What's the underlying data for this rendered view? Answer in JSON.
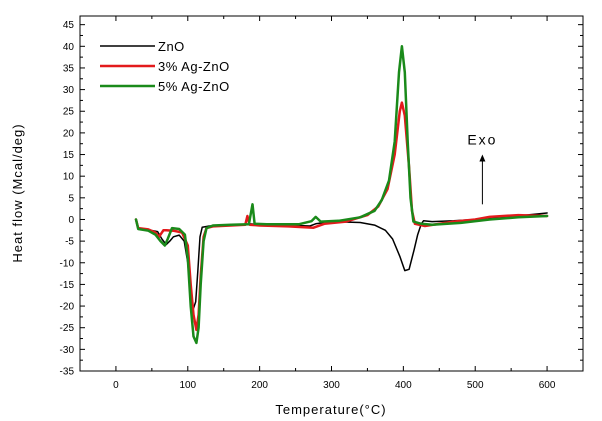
{
  "chart_data": {
    "type": "line",
    "title": "",
    "xlabel": "Temperature(°C)",
    "ylabel": "Heat flow (Mcal/deg)",
    "xlim": [
      -50,
      650
    ],
    "ylim": [
      -35,
      47
    ],
    "xticks": [
      0,
      100,
      200,
      300,
      400,
      500,
      600
    ],
    "yticks": [
      -35,
      -30,
      -25,
      -20,
      -15,
      -10,
      -5,
      0,
      5,
      10,
      15,
      20,
      25,
      30,
      35,
      40,
      45
    ],
    "grid": false,
    "legend_position": "top-left",
    "annotation": {
      "text": "Exo",
      "arrow": "up",
      "x": 510,
      "y_from": 3.5,
      "y_to": 15
    },
    "series": [
      {
        "name": "ZnO",
        "color": "#000000",
        "points": [
          [
            28,
            0
          ],
          [
            31,
            -2
          ],
          [
            45,
            -2.4
          ],
          [
            58,
            -2.8
          ],
          [
            64,
            -4.5
          ],
          [
            70,
            -5.8
          ],
          [
            75,
            -5
          ],
          [
            80,
            -4
          ],
          [
            88,
            -3.6
          ],
          [
            95,
            -5
          ],
          [
            100,
            -10
          ],
          [
            104,
            -18
          ],
          [
            108,
            -20.5
          ],
          [
            111,
            -19
          ],
          [
            114,
            -12
          ],
          [
            117,
            -4
          ],
          [
            120,
            -1.8
          ],
          [
            130,
            -1.5
          ],
          [
            150,
            -1.3
          ],
          [
            180,
            -1.2
          ],
          [
            185,
            -1
          ],
          [
            200,
            -1.2
          ],
          [
            250,
            -1.4
          ],
          [
            270,
            -1.5
          ],
          [
            278,
            -1
          ],
          [
            300,
            -0.5
          ],
          [
            340,
            -0.7
          ],
          [
            360,
            -1.3
          ],
          [
            375,
            -2.5
          ],
          [
            385,
            -4.5
          ],
          [
            395,
            -8.5
          ],
          [
            402,
            -11.8
          ],
          [
            408,
            -11.5
          ],
          [
            415,
            -7
          ],
          [
            420,
            -3.5
          ],
          [
            425,
            -1
          ],
          [
            428,
            -0.3
          ],
          [
            440,
            -0.5
          ],
          [
            470,
            -0.3
          ],
          [
            500,
            0
          ],
          [
            540,
            0.6
          ],
          [
            570,
            1
          ],
          [
            600,
            1.5
          ]
        ]
      },
      {
        "name": "3% Ag-ZnO",
        "color": "#e31a1c",
        "points": [
          [
            28,
            0
          ],
          [
            31,
            -2
          ],
          [
            45,
            -2.3
          ],
          [
            55,
            -3
          ],
          [
            60,
            -4
          ],
          [
            66,
            -2.5
          ],
          [
            70,
            -2.5
          ],
          [
            80,
            -2.6
          ],
          [
            92,
            -3
          ],
          [
            100,
            -6
          ],
          [
            104,
            -15
          ],
          [
            108,
            -22
          ],
          [
            112,
            -25.5
          ],
          [
            115,
            -22
          ],
          [
            118,
            -13
          ],
          [
            122,
            -4
          ],
          [
            126,
            -2
          ],
          [
            135,
            -1.6
          ],
          [
            160,
            -1.4
          ],
          [
            180,
            -1.2
          ],
          [
            183,
            0.8
          ],
          [
            186,
            -1.2
          ],
          [
            200,
            -1.4
          ],
          [
            240,
            -1.6
          ],
          [
            275,
            -1.9
          ],
          [
            290,
            -1
          ],
          [
            320,
            -0.5
          ],
          [
            350,
            1
          ],
          [
            365,
            3
          ],
          [
            378,
            7
          ],
          [
            388,
            15
          ],
          [
            395,
            25
          ],
          [
            398,
            27
          ],
          [
            402,
            24
          ],
          [
            408,
            12
          ],
          [
            412,
            2
          ],
          [
            416,
            -1
          ],
          [
            430,
            -1.5
          ],
          [
            470,
            -0.5
          ],
          [
            500,
            0
          ],
          [
            520,
            0.6
          ],
          [
            560,
            1
          ],
          [
            600,
            0.8
          ]
        ]
      },
      {
        "name": "5% Ag-ZnO",
        "color": "#1a8a1a",
        "points": [
          [
            28,
            0
          ],
          [
            31,
            -2.2
          ],
          [
            45,
            -2.6
          ],
          [
            55,
            -3.5
          ],
          [
            62,
            -5
          ],
          [
            68,
            -6
          ],
          [
            72,
            -4.5
          ],
          [
            78,
            -2
          ],
          [
            88,
            -2.2
          ],
          [
            96,
            -3.5
          ],
          [
            100,
            -9
          ],
          [
            104,
            -20
          ],
          [
            108,
            -27
          ],
          [
            112,
            -28.5
          ],
          [
            115,
            -25
          ],
          [
            118,
            -15
          ],
          [
            122,
            -5
          ],
          [
            126,
            -2
          ],
          [
            135,
            -1.4
          ],
          [
            160,
            -1.2
          ],
          [
            185,
            -1.1
          ],
          [
            190,
            3.5
          ],
          [
            193,
            -1
          ],
          [
            210,
            -1.1
          ],
          [
            255,
            -1.1
          ],
          [
            272,
            -0.4
          ],
          [
            278,
            0.6
          ],
          [
            285,
            -0.5
          ],
          [
            310,
            -0.3
          ],
          [
            340,
            0.5
          ],
          [
            360,
            2
          ],
          [
            370,
            4.5
          ],
          [
            380,
            9
          ],
          [
            388,
            18
          ],
          [
            394,
            34
          ],
          [
            398,
            40
          ],
          [
            402,
            34
          ],
          [
            406,
            18
          ],
          [
            410,
            5
          ],
          [
            414,
            -0.5
          ],
          [
            425,
            -1
          ],
          [
            440,
            -1.2
          ],
          [
            480,
            -0.8
          ],
          [
            520,
            0
          ],
          [
            560,
            0.5
          ],
          [
            600,
            0.8
          ]
        ]
      }
    ]
  }
}
